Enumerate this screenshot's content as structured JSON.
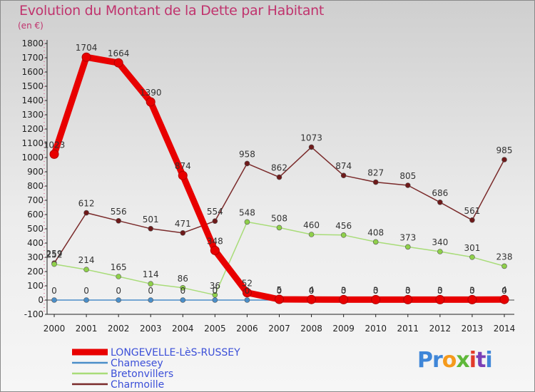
{
  "title": "Evolution du Montant de la Dette par Habitant",
  "subtitle": "(en €)",
  "logo": "Proxiti",
  "chart_data": {
    "type": "line",
    "title": "Evolution du Montant de la Dette par Habitant",
    "subtitle": "(en €)",
    "xlabel": "",
    "ylabel": "",
    "ylim": [
      -100,
      1800
    ],
    "yticks": [
      -100,
      0,
      100,
      200,
      300,
      400,
      500,
      600,
      700,
      800,
      900,
      1000,
      1100,
      1200,
      1300,
      1400,
      1500,
      1600,
      1700,
      1800
    ],
    "categories": [
      "2000",
      "2001",
      "2002",
      "2003",
      "2004",
      "2005",
      "2006",
      "2007",
      "2008",
      "2009",
      "2010",
      "2011",
      "2012",
      "2013",
      "2014"
    ],
    "grid": false,
    "legend_position": "bottom-left",
    "series": [
      {
        "name": "LONGEVELLE-LèS-RUSSEY",
        "color": "#e80000",
        "marker": "#e80000",
        "values": [
          1023,
          1704,
          1664,
          1390,
          874,
          348,
          52,
          5,
          4,
          3,
          3,
          3,
          3,
          3,
          4
        ],
        "labels": [
          "1023",
          "1704",
          "1664",
          "1390",
          "874",
          "348",
          "52",
          "5",
          "4",
          "3",
          "3",
          "3",
          "3",
          "3",
          "4"
        ]
      },
      {
        "name": "Chamesey",
        "color": "#4a8ec8",
        "marker": "#4a8ec8",
        "values": [
          0,
          0,
          0,
          0,
          0,
          0,
          0,
          0,
          0,
          0,
          0,
          0,
          0,
          0,
          0
        ],
        "labels": [
          "0",
          "0",
          "0",
          "0",
          "0",
          "0",
          "0",
          "0",
          "0",
          "0",
          "0",
          "0",
          "0",
          "0",
          "0"
        ]
      },
      {
        "name": "Bretonvillers",
        "color": "#a8dc78",
        "marker": "#8fd04a",
        "values": [
          252,
          214,
          165,
          114,
          86,
          36,
          548,
          508,
          460,
          456,
          408,
          373,
          340,
          301,
          238
        ],
        "labels": [
          "252",
          "214",
          "165",
          "114",
          "86",
          "36",
          "548",
          "508",
          "460",
          "456",
          "408",
          "373",
          "340",
          "301",
          "238"
        ]
      },
      {
        "name": "Charmoille",
        "color": "#7a2a2a",
        "marker": "#6e1a1a",
        "values": [
          259,
          612,
          556,
          501,
          471,
          554,
          958,
          862,
          1073,
          874,
          827,
          805,
          686,
          561,
          985
        ],
        "labels": [
          "259",
          "612",
          "556",
          "501",
          "471",
          "554",
          "958",
          "862",
          "1073",
          "874",
          "827",
          "805",
          "686",
          "561",
          "985"
        ]
      }
    ]
  }
}
